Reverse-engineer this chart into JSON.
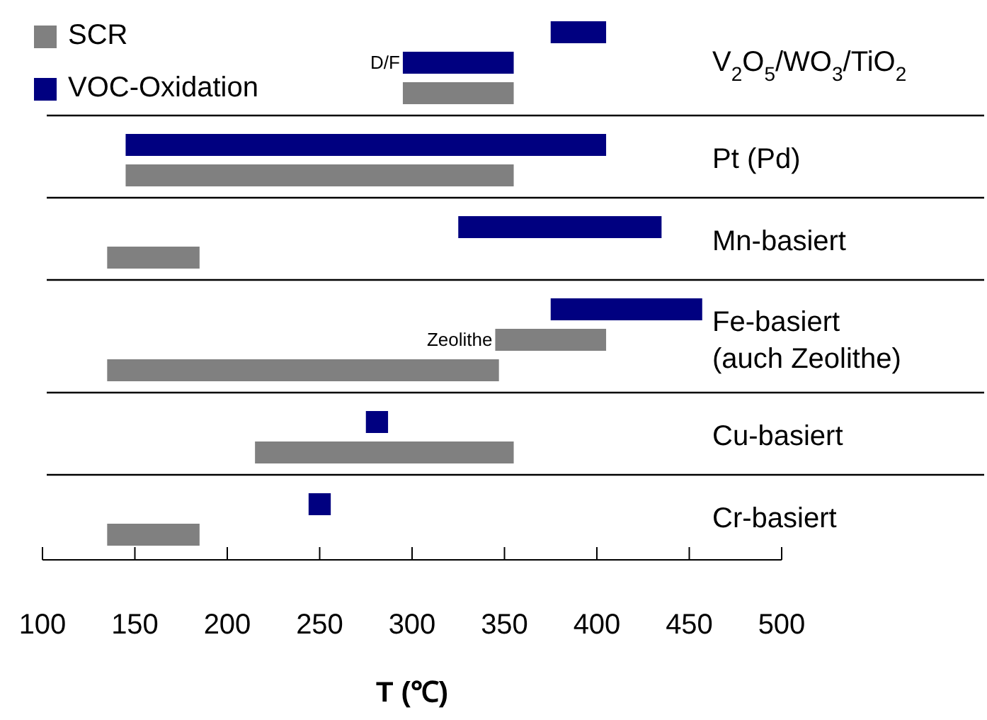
{
  "chart_data": {
    "type": "bar",
    "orientation": "horizontal",
    "xlabel": "T (℃)",
    "categories": [
      "V$_{2}$O$_{5}$/WO$_{3}$/TiO$_{2}$",
      "Pt (Pd)",
      "Mn-basiert",
      "Fe-basiert\n(auch Zeolithe)",
      "Cu-basiert",
      "Cr-basiert"
    ],
    "series": [
      {
        "color": "#000080",
        "base": [
          375,
          null,
          null,
          null,
          null,
          null
        ],
        "values": [
          30,
          null,
          null,
          null,
          null,
          null
        ]
      },
      {
        "name": "VOC-Oxidation",
        "color": "#000080",
        "base": [
          295,
          145,
          325,
          375,
          275,
          244
        ],
        "values": [
          60,
          260,
          110,
          82,
          12,
          12
        ]
      },
      {
        "color": "#808080",
        "base": [
          null,
          null,
          null,
          345,
          null,
          null
        ],
        "values": [
          null,
          null,
          null,
          60,
          null,
          null
        ]
      },
      {
        "name": "SCR",
        "color": "#808080",
        "base": [
          295,
          145,
          135,
          135,
          215,
          135
        ],
        "values": [
          60,
          210,
          50,
          212,
          140,
          50
        ]
      }
    ],
    "xlim": [
      100,
      500
    ],
    "xticks": [
      100,
      150,
      200,
      250,
      300,
      350,
      400,
      450,
      500
    ],
    "annotations": [
      {
        "text": "D/F",
        "x": 295,
        "y": "V$_{2}$O$_{5}$/WO$_{3}$/TiO$_{2}$"
      },
      {
        "text": "Zeolithe",
        "x": 345,
        "y": "Fe-basiert\n(auch Zeolithe)"
      }
    ],
    "legend": "top left",
    "grid": false
  }
}
